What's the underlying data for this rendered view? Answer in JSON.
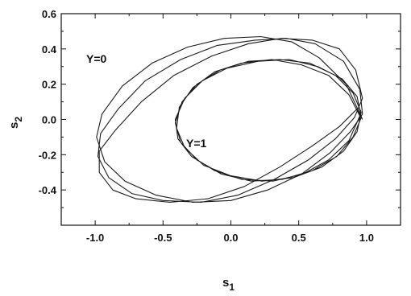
{
  "chart_data": {
    "type": "line",
    "title": "",
    "xlabel": "s",
    "xlabel_sub": "1",
    "ylabel": "s",
    "ylabel_sub": "2",
    "xlim": [
      -1.25,
      1.25
    ],
    "ylim": [
      -0.6,
      0.6
    ],
    "xticks": [
      -1.0,
      -0.5,
      0.0,
      0.5,
      1.0
    ],
    "xtick_labels": [
      "-1.0",
      "-0.5",
      "0.0",
      "0.5",
      "1.0"
    ],
    "yticks": [
      -0.4,
      -0.2,
      0.0,
      0.2,
      0.4,
      0.6
    ],
    "ytick_labels": [
      "-0.4",
      "-0.2",
      "0.0",
      "0.2",
      "0.4",
      "0.6"
    ],
    "grid": false,
    "annotations": [
      {
        "text": "Y=0",
        "x": -0.88,
        "y": 0.37
      },
      {
        "text": "Y=1",
        "x": -0.3,
        "y": -0.13
      }
    ],
    "series": [
      {
        "x": [
          0.97,
          0.85,
          0.65,
          0.45,
          0.22,
          -0.05,
          -0.32,
          -0.58,
          -0.8,
          -0.95,
          -0.99,
          -0.93,
          -0.78,
          -0.55,
          -0.28,
          0.0,
          0.27,
          0.52,
          0.73,
          0.88,
          0.97,
          0.95,
          0.83,
          0.62,
          0.41,
          0.18,
          -0.1,
          -0.37,
          -0.63,
          -0.83,
          -0.96,
          -0.98,
          -0.9,
          -0.73,
          -0.5,
          -0.22,
          0.05,
          0.32,
          0.57,
          0.77,
          0.91,
          0.97,
          0.92,
          0.8,
          0.6,
          0.37,
          0.13,
          -0.14,
          -0.42,
          -0.66,
          -0.85,
          -0.97,
          -0.97,
          -0.87,
          -0.7,
          -0.45,
          -0.17,
          0.1,
          0.36,
          0.6,
          0.8,
          0.93,
          0.97
        ],
        "y": [
          0.0,
          0.2,
          0.35,
          0.44,
          0.47,
          0.46,
          0.41,
          0.32,
          0.19,
          0.03,
          -0.1,
          -0.24,
          -0.35,
          -0.43,
          -0.47,
          -0.46,
          -0.4,
          -0.31,
          -0.19,
          -0.07,
          0.03,
          0.17,
          0.33,
          0.43,
          0.46,
          0.45,
          0.42,
          0.34,
          0.22,
          0.06,
          -0.08,
          -0.21,
          -0.33,
          -0.42,
          -0.46,
          -0.47,
          -0.43,
          -0.34,
          -0.23,
          -0.11,
          0.01,
          0.12,
          0.28,
          0.4,
          0.45,
          0.46,
          0.43,
          0.36,
          0.25,
          0.1,
          -0.06,
          -0.18,
          -0.3,
          -0.4,
          -0.45,
          -0.47,
          -0.45,
          -0.38,
          -0.27,
          -0.15,
          -0.04,
          0.06,
          0.0
        ]
      },
      {
        "x": [
          0.95,
          0.87,
          0.72,
          0.52,
          0.3,
          0.08,
          -0.12,
          -0.28,
          -0.38,
          -0.4,
          -0.34,
          -0.2,
          0.0,
          0.23,
          0.46,
          0.67,
          0.83,
          0.93,
          0.96,
          0.9,
          0.77,
          0.58,
          0.36,
          0.13,
          -0.08,
          -0.25,
          -0.36,
          -0.41,
          -0.37,
          -0.25,
          -0.07,
          0.15,
          0.38,
          0.6,
          0.78,
          0.9,
          0.96,
          0.93,
          0.82,
          0.64,
          0.43,
          0.2,
          -0.03,
          -0.21,
          -0.34,
          -0.41,
          -0.39,
          -0.29,
          -0.12,
          0.08,
          0.31,
          0.53,
          0.72,
          0.87,
          0.95
        ],
        "y": [
          0.02,
          0.14,
          0.25,
          0.31,
          0.34,
          0.32,
          0.27,
          0.18,
          0.07,
          -0.05,
          -0.16,
          -0.26,
          -0.32,
          -0.35,
          -0.33,
          -0.27,
          -0.18,
          -0.07,
          0.04,
          0.15,
          0.25,
          0.32,
          0.34,
          0.33,
          0.28,
          0.2,
          0.1,
          -0.02,
          -0.13,
          -0.23,
          -0.31,
          -0.35,
          -0.34,
          -0.29,
          -0.21,
          -0.1,
          0.01,
          0.13,
          0.23,
          0.3,
          0.34,
          0.33,
          0.29,
          0.22,
          0.12,
          0.0,
          -0.11,
          -0.21,
          -0.29,
          -0.34,
          -0.35,
          -0.31,
          -0.23,
          -0.12,
          0.02
        ]
      }
    ]
  }
}
